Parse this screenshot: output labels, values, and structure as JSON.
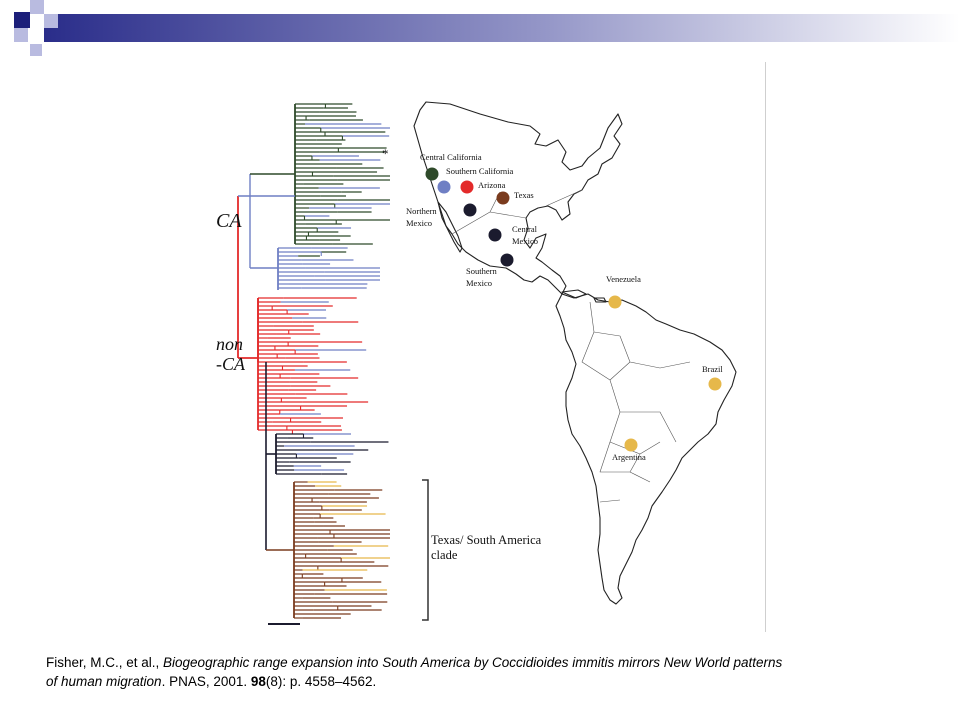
{
  "theme": {
    "accent": "#1c1f7a",
    "gradient_from": "#2a2d8a",
    "gradient_to": "#ffffff"
  },
  "figure": {
    "tree": {
      "clade_labels": [
        "CA",
        "non",
        "-CA"
      ],
      "asterisk": "*",
      "bracket_label_line1": "Texas/ South America",
      "bracket_label_line2": "clade",
      "colors": {
        "central_california": "#2e4a2a",
        "southern_california": "#6f7fc4",
        "arizona": "#e32a2a",
        "texas": "#7a3b1e",
        "mexico": "#1b1b2e",
        "south_america": "#e6b84a"
      }
    },
    "map": {
      "regions": [
        {
          "name": "Central California",
          "color": "#2e4a2a"
        },
        {
          "name": "Southern California",
          "color": "#6f7fc4"
        },
        {
          "name": "Arizona",
          "color": "#e32a2a"
        },
        {
          "name": "Texas",
          "color": "#7a3b1e"
        },
        {
          "name": "Northern Mexico",
          "color": "#1b1b2e"
        },
        {
          "name": "Central Mexico",
          "color": "#1b1b2e"
        },
        {
          "name": "Southern Mexico",
          "color": "#1b1b2e"
        },
        {
          "name": "Venezuela",
          "color": "#e6b84a"
        },
        {
          "name": "Brazil",
          "color": "#e6b84a"
        },
        {
          "name": "Argentina",
          "color": "#e6b84a"
        }
      ],
      "labels": {
        "central_california": "Central California",
        "southern_california": "Southern California",
        "arizona": "Arizona",
        "texas": "Texas",
        "northern_mexico_1": "Northern",
        "northern_mexico_2": "Mexico",
        "central_mexico_1": "Central",
        "central_mexico_2": "Mexico",
        "southern_mexico_1": "Southern",
        "southern_mexico_2": "Mexico",
        "venezuela": "Venezuela",
        "brazil": "Brazil",
        "argentina": "Argentina"
      }
    }
  },
  "citation": {
    "authors": "Fisher, M.C., et al., ",
    "title_part1": "Biogeographic range expansion into South America by Coccidioides immitis mirrors New World patterns",
    "title_part2": " of human migration",
    "journal": ". PNAS, 2001. ",
    "volume": "98",
    "issue_pages": "(8): p. 4558–4562."
  }
}
